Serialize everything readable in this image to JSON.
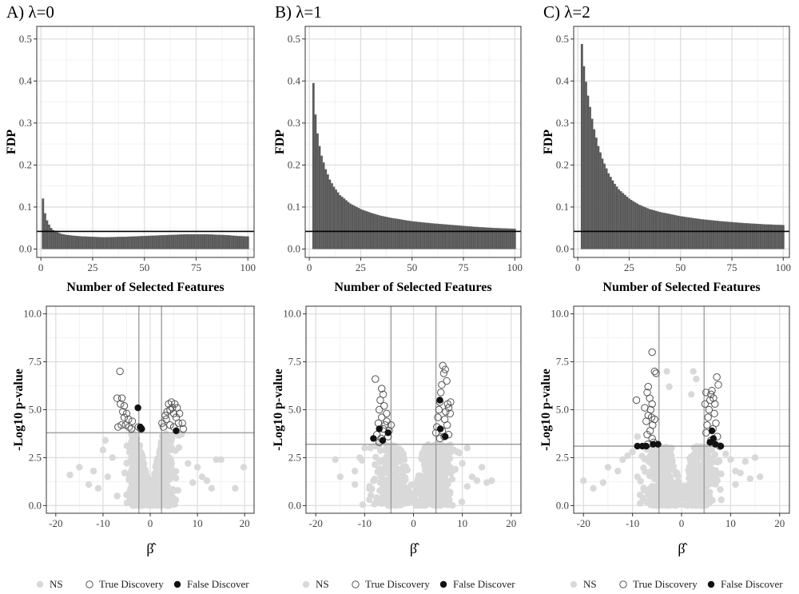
{
  "chart_data": [
    {
      "type": "bar",
      "panel": "A",
      "title": "A) λ=0",
      "xlabel": "Number of Selected Features",
      "ylabel": "FDP",
      "xlim": [
        -2,
        103
      ],
      "ylim": [
        -0.02,
        0.53
      ],
      "xticks": [
        0,
        25,
        50,
        75,
        100
      ],
      "yticks": [
        0.0,
        0.1,
        0.2,
        0.3,
        0.4,
        0.5
      ],
      "hline": 0.042,
      "bar_color": "#595959",
      "grid": true,
      "profile": [
        [
          1,
          0.12
        ],
        [
          2,
          0.085
        ],
        [
          3,
          0.068
        ],
        [
          4,
          0.058
        ],
        [
          5,
          0.05
        ],
        [
          6,
          0.045
        ],
        [
          8,
          0.04
        ],
        [
          10,
          0.036
        ],
        [
          12,
          0.034
        ],
        [
          15,
          0.032
        ],
        [
          20,
          0.03
        ],
        [
          25,
          0.029
        ],
        [
          30,
          0.028
        ],
        [
          35,
          0.0285
        ],
        [
          40,
          0.029
        ],
        [
          45,
          0.03
        ],
        [
          50,
          0.031
        ],
        [
          55,
          0.032
        ],
        [
          60,
          0.033
        ],
        [
          65,
          0.034
        ],
        [
          70,
          0.035
        ],
        [
          75,
          0.035
        ],
        [
          80,
          0.035
        ],
        [
          85,
          0.034
        ],
        [
          90,
          0.033
        ],
        [
          95,
          0.031
        ],
        [
          100,
          0.03
        ]
      ]
    },
    {
      "type": "bar",
      "panel": "B",
      "title": "B) λ=1",
      "xlabel": "Number of Selected Features",
      "ylabel": "FDP",
      "xlim": [
        -2,
        103
      ],
      "ylim": [
        -0.02,
        0.53
      ],
      "xticks": [
        0,
        25,
        50,
        75,
        100
      ],
      "yticks": [
        0.0,
        0.1,
        0.2,
        0.3,
        0.4,
        0.5
      ],
      "hline": 0.042,
      "bar_color": "#595959",
      "grid": true,
      "profile": [
        [
          2,
          0.395
        ],
        [
          3,
          0.32
        ],
        [
          4,
          0.275
        ],
        [
          5,
          0.245
        ],
        [
          6,
          0.222
        ],
        [
          8,
          0.19
        ],
        [
          10,
          0.165
        ],
        [
          12,
          0.148
        ],
        [
          15,
          0.128
        ],
        [
          20,
          0.108
        ],
        [
          25,
          0.095
        ],
        [
          30,
          0.086
        ],
        [
          35,
          0.079
        ],
        [
          40,
          0.074
        ],
        [
          45,
          0.07
        ],
        [
          50,
          0.066
        ],
        [
          60,
          0.061
        ],
        [
          70,
          0.057
        ],
        [
          80,
          0.053
        ],
        [
          90,
          0.05
        ],
        [
          100,
          0.048
        ]
      ]
    },
    {
      "type": "bar",
      "panel": "C",
      "title": "C) λ=2",
      "xlabel": "Number of Selected Features",
      "ylabel": "FDP",
      "xlim": [
        -2,
        103
      ],
      "ylim": [
        -0.02,
        0.53
      ],
      "xticks": [
        0,
        25,
        50,
        75,
        100
      ],
      "yticks": [
        0.0,
        0.1,
        0.2,
        0.3,
        0.4,
        0.5
      ],
      "hline": 0.042,
      "bar_color": "#595959",
      "grid": true,
      "profile": [
        [
          2,
          0.488
        ],
        [
          3,
          0.435
        ],
        [
          4,
          0.398
        ],
        [
          5,
          0.365
        ],
        [
          6,
          0.338
        ],
        [
          7,
          0.31
        ],
        [
          8,
          0.285
        ],
        [
          10,
          0.245
        ],
        [
          12,
          0.215
        ],
        [
          15,
          0.18
        ],
        [
          18,
          0.155
        ],
        [
          20,
          0.142
        ],
        [
          25,
          0.12
        ],
        [
          30,
          0.105
        ],
        [
          35,
          0.095
        ],
        [
          40,
          0.088
        ],
        [
          50,
          0.078
        ],
        [
          60,
          0.071
        ],
        [
          70,
          0.066
        ],
        [
          80,
          0.062
        ],
        [
          90,
          0.059
        ],
        [
          100,
          0.057
        ]
      ]
    },
    {
      "type": "scatter",
      "panel": "A",
      "xlabel": "β̂",
      "ylabel": "-Log10 p-value",
      "xlim": [
        -22,
        22
      ],
      "ylim": [
        -0.4,
        10.4
      ],
      "xticks": [
        -20,
        -10,
        0,
        10,
        20
      ],
      "yticks": [
        0.0,
        2.5,
        5.0,
        7.5,
        10.0
      ],
      "vlines": [
        -2.4,
        2.4
      ],
      "hline": 3.8,
      "grid": true,
      "ns_cloud": {
        "left_center": -2.2,
        "right_center": 2.2,
        "spread": 1.6,
        "top": 3.8
      },
      "ns_outliers": [
        [
          -17,
          1.6
        ],
        [
          -15,
          2.0
        ],
        [
          -12,
          1.8
        ],
        [
          -11,
          0.9
        ],
        [
          -10,
          2.9
        ],
        [
          -9,
          1.5
        ],
        [
          -9.5,
          3.4
        ],
        [
          -8,
          2.5
        ],
        [
          8,
          2.2
        ],
        [
          9,
          1.2
        ],
        [
          10,
          2.0
        ],
        [
          11,
          1.5
        ],
        [
          12,
          1.3
        ],
        [
          13,
          0.9
        ],
        [
          14,
          2.4
        ],
        [
          15,
          2.4
        ],
        [
          18,
          0.9
        ],
        [
          19.8,
          2.0
        ],
        [
          -13,
          1.1
        ],
        [
          -7,
          0.5
        ]
      ],
      "true_discovery": [
        [
          -6.4,
          7.0
        ],
        [
          -7.0,
          5.6
        ],
        [
          -6.0,
          5.6
        ],
        [
          -6.3,
          5.3
        ],
        [
          -5.5,
          5.2
        ],
        [
          -5.8,
          4.9
        ],
        [
          -5.0,
          4.8
        ],
        [
          -4.6,
          4.5
        ],
        [
          -5.5,
          4.6
        ],
        [
          -6.8,
          4.1
        ],
        [
          -6.1,
          4.2
        ],
        [
          -5.2,
          4.2
        ],
        [
          -4.5,
          4.1
        ],
        [
          -3.8,
          4.4
        ],
        [
          -4.0,
          4.0
        ],
        [
          -2.5,
          4.1
        ],
        [
          -2.0,
          4.0
        ],
        [
          2.5,
          4.3
        ],
        [
          2.8,
          4.1
        ],
        [
          3.2,
          4.7
        ],
        [
          3.4,
          4.5
        ],
        [
          3.6,
          4.9
        ],
        [
          3.9,
          5.3
        ],
        [
          4.2,
          5.0
        ],
        [
          4.5,
          5.4
        ],
        [
          4.7,
          5.1
        ],
        [
          5.0,
          4.8
        ],
        [
          5.2,
          5.3
        ],
        [
          5.5,
          4.6
        ],
        [
          5.7,
          5.1
        ],
        [
          6.0,
          4.3
        ],
        [
          6.2,
          4.8
        ],
        [
          5.0,
          4.1
        ],
        [
          4.2,
          4.2
        ],
        [
          6.8,
          4.3
        ],
        [
          7.0,
          4.0
        ]
      ],
      "false_discovery": [
        [
          -2.6,
          5.1
        ],
        [
          -2.1,
          4.1
        ],
        [
          -1.8,
          4.0
        ],
        [
          5.5,
          3.9
        ]
      ]
    },
    {
      "type": "scatter",
      "panel": "B",
      "xlabel": "β̂",
      "ylabel": "-Log10 p-value",
      "xlim": [
        -22,
        22
      ],
      "ylim": [
        -0.4,
        10.4
      ],
      "xticks": [
        -20,
        -10,
        0,
        10,
        20
      ],
      "yticks": [
        0.0,
        2.5,
        5.0,
        7.5,
        10.0
      ],
      "vlines": [
        -4.6,
        4.6
      ],
      "hline": 3.2,
      "grid": true,
      "ns_cloud": {
        "left_center": -4.3,
        "right_center": 4.3,
        "spread": 2.2,
        "top": 3.2
      },
      "ns_outliers": [
        [
          -16,
          2.4
        ],
        [
          -15,
          1.5
        ],
        [
          -12,
          1.8
        ],
        [
          -11,
          2.5
        ],
        [
          -10,
          3.0
        ],
        [
          -9,
          1.0
        ],
        [
          -12,
          1.1
        ],
        [
          10,
          2.2
        ],
        [
          11,
          1.0
        ],
        [
          12,
          1.5
        ],
        [
          13,
          1.3
        ],
        [
          14,
          2.0
        ],
        [
          15,
          1.2
        ],
        [
          16,
          1.3
        ],
        [
          9,
          2.8
        ],
        [
          11,
          3.0
        ]
      ],
      "true_discovery": [
        [
          -7.8,
          6.6
        ],
        [
          -6.5,
          6.1
        ],
        [
          -6.2,
          5.8
        ],
        [
          -6.8,
          5.5
        ],
        [
          -7.0,
          5.0
        ],
        [
          -6.0,
          5.2
        ],
        [
          -5.5,
          4.8
        ],
        [
          -6.5,
          4.6
        ],
        [
          -7.2,
          4.3
        ],
        [
          -5.8,
          4.2
        ],
        [
          -6.2,
          4.0
        ],
        [
          -7.5,
          3.7
        ],
        [
          -5.0,
          3.9
        ],
        [
          -4.6,
          4.2
        ],
        [
          -5.2,
          3.6
        ],
        [
          -6.6,
          3.5
        ],
        [
          -7.0,
          3.3
        ],
        [
          -5.5,
          4.4
        ],
        [
          4.6,
          3.8
        ],
        [
          4.8,
          4.1
        ],
        [
          5.0,
          4.6
        ],
        [
          5.2,
          5.0
        ],
        [
          5.4,
          5.4
        ],
        [
          5.6,
          5.9
        ],
        [
          5.8,
          6.3
        ],
        [
          6.0,
          7.3
        ],
        [
          6.2,
          6.9
        ],
        [
          6.5,
          7.1
        ],
        [
          6.8,
          6.5
        ],
        [
          7.0,
          5.3
        ],
        [
          7.2,
          5.1
        ],
        [
          6.6,
          4.9
        ],
        [
          6.4,
          4.5
        ],
        [
          7.5,
          4.8
        ],
        [
          7.6,
          5.4
        ],
        [
          6.9,
          4.2
        ],
        [
          5.9,
          3.9
        ],
        [
          7.2,
          3.7
        ],
        [
          6.3,
          3.6
        ],
        [
          5.4,
          3.5
        ]
      ],
      "false_discovery": [
        [
          -8.2,
          3.5
        ],
        [
          -7.0,
          4.0
        ],
        [
          -6.3,
          3.4
        ],
        [
          -5.2,
          3.8
        ],
        [
          5.4,
          5.5
        ],
        [
          5.5,
          4.0
        ],
        [
          6.5,
          3.6
        ]
      ]
    },
    {
      "type": "scatter",
      "panel": "C",
      "xlabel": "β̂",
      "ylabel": "-Log10 p-value",
      "xlim": [
        -22,
        22
      ],
      "ylim": [
        -0.4,
        10.4
      ],
      "xticks": [
        -20,
        -10,
        0,
        10,
        20
      ],
      "yticks": [
        0.0,
        2.5,
        5.0,
        7.5,
        10.0
      ],
      "vlines": [
        -4.6,
        4.6
      ],
      "hline": 3.1,
      "grid": true,
      "ns_cloud": {
        "left_center": -3.8,
        "right_center": 3.8,
        "spread": 2.0,
        "top": 3.1
      },
      "ns_outliers": [
        [
          -20,
          1.3
        ],
        [
          -18,
          0.9
        ],
        [
          -16,
          1.2
        ],
        [
          -15,
          2.0
        ],
        [
          -13,
          1.8
        ],
        [
          -12,
          2.4
        ],
        [
          -11,
          2.6
        ],
        [
          -10,
          2.8
        ],
        [
          -9,
          1.5
        ],
        [
          10,
          2.4
        ],
        [
          11,
          1.8
        ],
        [
          12,
          1.7
        ],
        [
          13,
          2.3
        ],
        [
          14,
          1.4
        ],
        [
          15,
          2.5
        ],
        [
          16,
          1.5
        ],
        [
          11,
          1.1
        ],
        [
          9,
          2.7
        ],
        [
          -9,
          3.6
        ],
        [
          -3.0,
          7.0
        ],
        [
          -2.5,
          6.2
        ],
        [
          2.4,
          7.0
        ],
        [
          3.0,
          6.6
        ],
        [
          2.0,
          5.8
        ]
      ],
      "true_discovery": [
        [
          -6.0,
          8.0
        ],
        [
          -5.5,
          7.0
        ],
        [
          -5.2,
          6.9
        ],
        [
          -6.8,
          6.2
        ],
        [
          -7.0,
          5.9
        ],
        [
          -6.5,
          5.6
        ],
        [
          -9.2,
          5.5
        ],
        [
          -6.0,
          5.3
        ],
        [
          -6.3,
          5.0
        ],
        [
          -6.8,
          4.7
        ],
        [
          -7.2,
          4.4
        ],
        [
          -5.9,
          4.2
        ],
        [
          -6.4,
          3.9
        ],
        [
          -7.0,
          3.7
        ],
        [
          -6.0,
          3.5
        ],
        [
          -5.7,
          3.3
        ],
        [
          -6.9,
          3.2
        ],
        [
          -6.1,
          4.6
        ],
        [
          -5.5,
          4.5
        ],
        [
          -7.5,
          5.1
        ],
        [
          5.0,
          3.8
        ],
        [
          5.2,
          4.2
        ],
        [
          5.4,
          4.6
        ],
        [
          5.6,
          5.0
        ],
        [
          5.8,
          5.5
        ],
        [
          6.0,
          5.8
        ],
        [
          6.2,
          6.0
        ],
        [
          6.5,
          5.6
        ],
        [
          6.8,
          5.3
        ],
        [
          7.2,
          6.7
        ],
        [
          7.5,
          6.3
        ],
        [
          6.7,
          4.8
        ],
        [
          7.0,
          4.3
        ],
        [
          6.4,
          4.0
        ],
        [
          7.3,
          3.6
        ],
        [
          6.0,
          3.4
        ],
        [
          4.8,
          5.3
        ],
        [
          5.0,
          5.9
        ],
        [
          7.8,
          3.1
        ]
      ],
      "false_discovery": [
        [
          -9.0,
          3.1
        ],
        [
          -8.0,
          3.1
        ],
        [
          -7.2,
          3.1
        ],
        [
          -5.8,
          3.2
        ],
        [
          -4.8,
          3.2
        ],
        [
          5.8,
          3.3
        ],
        [
          6.5,
          3.5
        ],
        [
          6.2,
          3.9
        ],
        [
          6.9,
          3.2
        ],
        [
          8.0,
          3.1
        ]
      ]
    }
  ],
  "legends": [
    {
      "items": [
        {
          "symbol": "ns",
          "label": "NS"
        },
        {
          "symbol": "true",
          "label": "True Discovery"
        },
        {
          "symbol": "false",
          "label": "False Discover"
        }
      ]
    },
    {
      "items": [
        {
          "symbol": "ns",
          "label": "NS"
        },
        {
          "symbol": "true",
          "label": "True Discovery"
        },
        {
          "symbol": "false",
          "label": "False Discover"
        }
      ]
    },
    {
      "items": [
        {
          "symbol": "ns",
          "label": "NS"
        },
        {
          "symbol": "true",
          "label": "True Discovery"
        },
        {
          "symbol": "false",
          "label": "False Discover"
        }
      ]
    }
  ],
  "colors": {
    "ns": "#d9d9d9",
    "true_outline": "#555555",
    "false_fill": "#111111",
    "grid": "#dedede",
    "frame": "#333333",
    "refline": "#999999"
  }
}
